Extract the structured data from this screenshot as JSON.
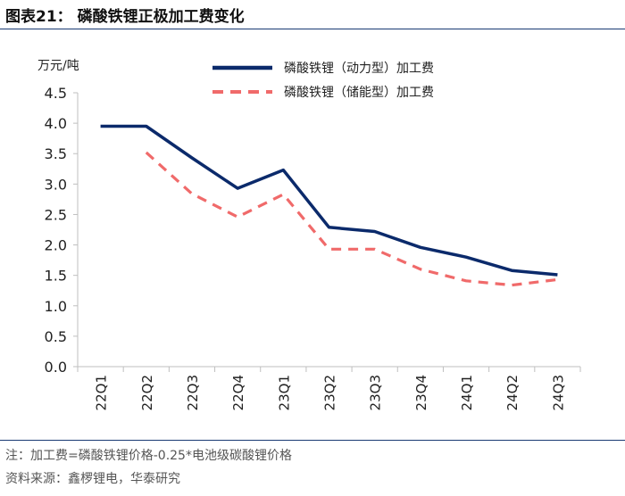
{
  "title": "图表21：  磷酸铁锂正极加工费变化",
  "note": "注：加工费=磷酸铁锂价格-0.25*电池级碳酸锂价格",
  "source": "资料来源：鑫椤锂电，华泰研究",
  "colors": {
    "power": "#0b2a6b",
    "storage": "#f06a6a",
    "axis": "#bfbfbf",
    "rule": "#1a3a73"
  },
  "chart_data": {
    "type": "line",
    "ylabel": "万元/吨",
    "ylim": [
      0,
      4.5
    ],
    "yticks": [
      "0.0",
      "0.5",
      "1.0",
      "1.5",
      "2.0",
      "2.5",
      "3.0",
      "3.5",
      "4.0",
      "4.5"
    ],
    "categories": [
      "22Q1",
      "22Q2",
      "22Q3",
      "22Q4",
      "23Q1",
      "23Q2",
      "23Q3",
      "23Q4",
      "24Q1",
      "24Q2",
      "24Q3"
    ],
    "series": [
      {
        "name": "磷酸铁锂（动力型）加工费",
        "style": "solid",
        "values": [
          3.95,
          3.95,
          3.43,
          2.93,
          3.23,
          2.29,
          2.22,
          1.96,
          1.8,
          1.58,
          1.51
        ]
      },
      {
        "name": "磷酸铁锂（储能型）加工费",
        "style": "dashed",
        "values": [
          null,
          3.52,
          2.84,
          2.46,
          2.83,
          1.93,
          1.93,
          1.6,
          1.41,
          1.34,
          1.43
        ]
      }
    ]
  }
}
